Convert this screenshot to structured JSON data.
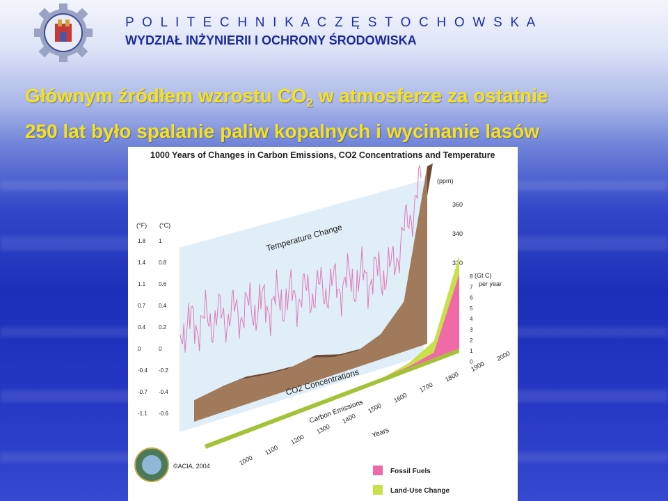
{
  "header": {
    "university": "P O L I T E C H N I K A   C Z Ę S T O C H O W S K A",
    "faculty": "WYDZIAŁ INŻYNIERII I OCHRONY ŚRODOWISKA"
  },
  "slide": {
    "title_line1_a": "Głównym źródłem wzrostu CO",
    "title_line1_sub": "2",
    "title_line1_b": " w atmosferze za ostatnie",
    "title_line2": "250 lat było spalanie paliw kopalnych i wycinanie lasów"
  },
  "chart_data": {
    "type": "area",
    "title": "1000 Years of Changes in Carbon Emissions, CO2 Concentrations and Temperature",
    "x": [
      1000,
      1100,
      1200,
      1300,
      1400,
      1500,
      1600,
      1700,
      1800,
      1900,
      2000
    ],
    "x_label": "Years",
    "x_tick_labels": [
      "1000",
      "1100",
      "1200",
      "1300",
      "1400",
      "1500",
      "1600",
      "1700",
      "1800",
      "1900",
      "2000"
    ],
    "panels": {
      "temperature": {
        "label": "Temperature Change",
        "axis_f_label": "(°F)",
        "axis_c_label": "(°C)",
        "ticks_f": [
          "1.8",
          "1.4",
          "1.1",
          "0.7",
          "0.4",
          "0",
          "-0.4",
          "-0.7",
          "-1.1"
        ],
        "ticks_c": [
          "1",
          "0.8",
          "0.6",
          "0.4",
          "0.2",
          "0",
          "-0.2",
          "-0.4",
          "-0.6"
        ],
        "color": "#e07ab8"
      },
      "co2": {
        "label": "CO2 Concentrations",
        "unit": "(ppm)",
        "ticks": [
          "360",
          "340",
          "320"
        ],
        "values": [
          280,
          282,
          283,
          281,
          280,
          282,
          278,
          277,
          282,
          296,
          368
        ],
        "color": "#8a6248"
      },
      "emissions": {
        "label": "Carbon Emissions",
        "unit_line1": "(Gt C)",
        "unit_line2": "per year",
        "ticks": [
          "8",
          "7",
          "6",
          "5",
          "4",
          "3",
          "2",
          "1",
          "0"
        ],
        "series": [
          {
            "name": "Fossil Fuels",
            "color": "#f06aa8",
            "values": [
              0,
              0,
              0,
              0,
              0,
              0,
              0,
              0,
              0.1,
              0.5,
              6.5
            ]
          },
          {
            "name": "Land-Use Change",
            "color": "#c8e04a",
            "values": [
              0,
              0,
              0,
              0,
              0,
              0,
              0,
              0,
              0.3,
              1.0,
              1.6
            ]
          }
        ]
      }
    },
    "credit": "©ACIA, 2004"
  }
}
